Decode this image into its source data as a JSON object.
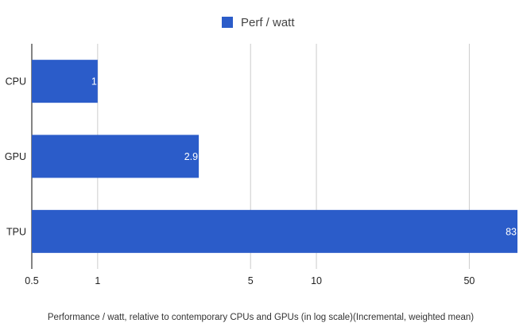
{
  "chart_data": {
    "type": "bar",
    "orientation": "horizontal",
    "x_scale": "log",
    "categories": [
      "CPU",
      "GPU",
      "TPU"
    ],
    "series": [
      {
        "name": "Perf / watt",
        "values": [
          1,
          2.9,
          83
        ]
      }
    ],
    "data_labels": [
      "1",
      "2.9",
      "83"
    ],
    "xlim": [
      0.5,
      83
    ],
    "xticks": [
      0.5,
      1,
      5,
      10,
      50
    ],
    "xtick_labels": [
      "0.5",
      "1",
      "5",
      "10",
      "50"
    ],
    "xlabel": "Performance / watt, relative to contemporary CPUs and GPUs (in log scale)(Incremental, weighted mean)",
    "ylabel": "",
    "title": "",
    "grid": true,
    "legend_position": "top",
    "colors": {
      "bar": "#2b5cc9",
      "grid": "#cccccc",
      "axis": "#333333"
    }
  }
}
